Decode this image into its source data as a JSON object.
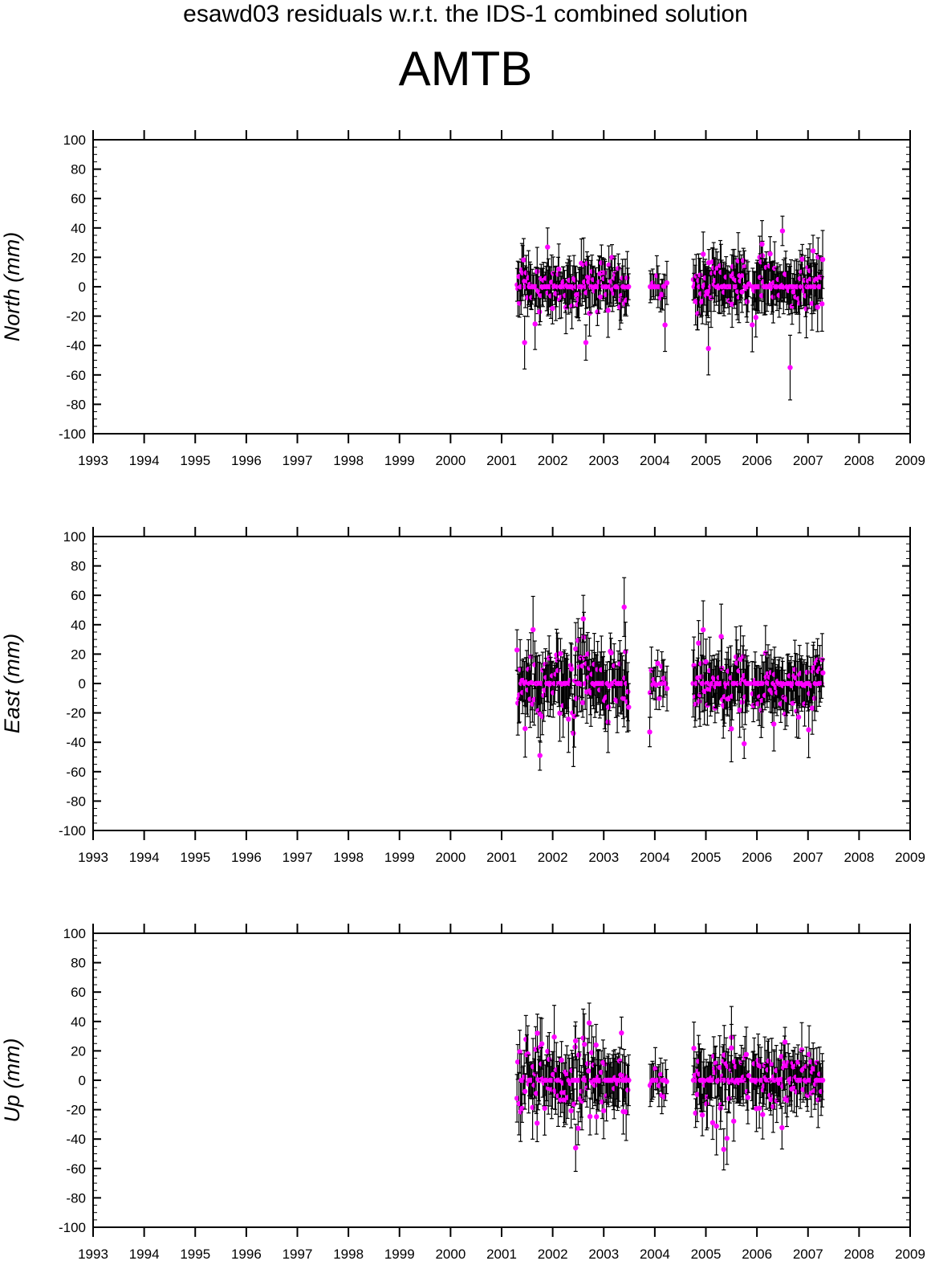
{
  "figure": {
    "title": "esawd03 residuals w.r.t. the IDS-1 combined solution",
    "station": "AMTB"
  },
  "colors": {
    "points": "#ff00ff",
    "error_bars": "#000000",
    "axes": "#000000",
    "background": "#ffffff"
  },
  "chart_data": [
    {
      "type": "scatter",
      "component": "north",
      "ylabel": "North (mm)",
      "xlim": [
        1993,
        2009
      ],
      "ylim": [
        -100,
        100
      ],
      "x_ticks": [
        "1993",
        "1994",
        "1995",
        "1996",
        "1997",
        "1998",
        "1999",
        "2000",
        "2001",
        "2002",
        "2003",
        "2004",
        "2005",
        "2006",
        "2007",
        "2008",
        "2009"
      ],
      "y_ticks": [
        "-100",
        "-80",
        "-60",
        "-40",
        "-20",
        "0",
        "20",
        "40",
        "60",
        "80",
        "100"
      ],
      "grid": false,
      "segments": [
        {
          "start": 2001.3,
          "end": 2003.5,
          "count": 140,
          "spread": 9,
          "err": 14
        },
        {
          "start": 2003.9,
          "end": 2004.25,
          "count": 14,
          "spread": 8,
          "err": 12
        },
        {
          "start": 2004.75,
          "end": 2005.85,
          "count": 75,
          "spread": 9,
          "err": 15
        },
        {
          "start": 2005.9,
          "end": 2007.3,
          "count": 95,
          "spread": 10,
          "err": 15
        }
      ],
      "outliers": [
        {
          "x": 2001.45,
          "y": -38,
          "err": 18
        },
        {
          "x": 2001.9,
          "y": 27,
          "err": 13
        },
        {
          "x": 2002.65,
          "y": -38,
          "err": 12
        },
        {
          "x": 2005.05,
          "y": -42,
          "err": 18
        },
        {
          "x": 2006.1,
          "y": 29,
          "err": 16
        },
        {
          "x": 2006.5,
          "y": 38,
          "err": 10
        },
        {
          "x": 2006.65,
          "y": -55,
          "err": 22
        },
        {
          "x": 2004.2,
          "y": -26,
          "err": 18
        }
      ]
    },
    {
      "type": "scatter",
      "component": "east",
      "ylabel": "East (mm)",
      "xlim": [
        1993,
        2009
      ],
      "ylim": [
        -100,
        100
      ],
      "x_ticks": [
        "1993",
        "1994",
        "1995",
        "1996",
        "1997",
        "1998",
        "1999",
        "2000",
        "2001",
        "2002",
        "2003",
        "2004",
        "2005",
        "2006",
        "2007",
        "2008",
        "2009"
      ],
      "y_ticks": [
        "-100",
        "-80",
        "-60",
        "-40",
        "-20",
        "0",
        "20",
        "40",
        "60",
        "80",
        "100"
      ],
      "grid": false,
      "segments": [
        {
          "start": 2001.3,
          "end": 2003.5,
          "count": 140,
          "spread": 15,
          "err": 17
        },
        {
          "start": 2003.9,
          "end": 2004.25,
          "count": 14,
          "spread": 11,
          "err": 13
        },
        {
          "start": 2004.75,
          "end": 2005.85,
          "count": 75,
          "spread": 13,
          "err": 17
        },
        {
          "start": 2005.9,
          "end": 2007.3,
          "count": 95,
          "spread": 12,
          "err": 15
        }
      ],
      "outliers": [
        {
          "x": 2003.4,
          "y": 52,
          "err": 20
        },
        {
          "x": 2001.75,
          "y": -49,
          "err": 10
        },
        {
          "x": 2002.6,
          "y": 44,
          "err": 16
        },
        {
          "x": 2003.9,
          "y": -33,
          "err": 10
        },
        {
          "x": 2005.3,
          "y": 32,
          "err": 22
        },
        {
          "x": 2005.75,
          "y": -41,
          "err": 10
        }
      ]
    },
    {
      "type": "scatter",
      "component": "up",
      "ylabel": "Up (mm)",
      "xlim": [
        1993,
        2009
      ],
      "ylim": [
        -100,
        100
      ],
      "x_ticks": [
        "1993",
        "1994",
        "1995",
        "1996",
        "1997",
        "1998",
        "1999",
        "2000",
        "2001",
        "2002",
        "2003",
        "2004",
        "2005",
        "2006",
        "2007",
        "2008",
        "2009"
      ],
      "y_ticks": [
        "-100",
        "-80",
        "-60",
        "-40",
        "-20",
        "0",
        "20",
        "40",
        "60",
        "80",
        "100"
      ],
      "grid": false,
      "segments": [
        {
          "start": 2001.3,
          "end": 2003.5,
          "count": 140,
          "spread": 13,
          "err": 16
        },
        {
          "start": 2003.9,
          "end": 2004.25,
          "count": 14,
          "spread": 10,
          "err": 12
        },
        {
          "start": 2004.75,
          "end": 2005.85,
          "count": 75,
          "spread": 14,
          "err": 16
        },
        {
          "start": 2005.9,
          "end": 2007.3,
          "count": 95,
          "spread": 11,
          "err": 15
        }
      ],
      "outliers": [
        {
          "x": 2001.7,
          "y": 32,
          "err": 13
        },
        {
          "x": 2002.45,
          "y": -46,
          "err": 16
        },
        {
          "x": 2005.35,
          "y": -47,
          "err": 14
        },
        {
          "x": 2005.5,
          "y": 22,
          "err": 16
        },
        {
          "x": 2002.85,
          "y": 24,
          "err": 14
        },
        {
          "x": 2006.55,
          "y": 26,
          "err": 10
        }
      ]
    }
  ]
}
